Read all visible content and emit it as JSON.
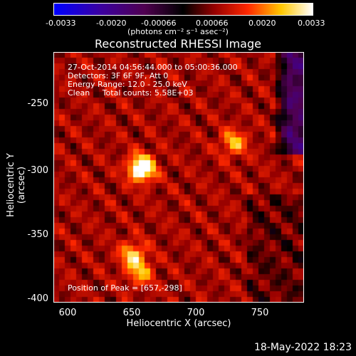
{
  "chart_data": {
    "type": "heatmap",
    "title": "Reconstructed RHESSI Image",
    "xlabel": "Heliocentric X (arcsec)",
    "ylabel": "Heliocentric Y (arcsec)",
    "xlim": [
      588,
      784
    ],
    "ylim": [
      -403,
      -207
    ],
    "xticks": [
      600,
      650,
      700,
      750
    ],
    "yticks": [
      -250,
      -300,
      -350,
      -400
    ],
    "colorbar": {
      "ticks": [
        "-0.0033",
        "-0.0020",
        "-0.00066",
        "0.00066",
        "0.0020",
        "0.0033"
      ],
      "unit_label": "(photons cm⁻² s⁻¹ asec⁻²)",
      "range": [
        -0.0033,
        0.0033
      ]
    },
    "annotations": [
      "27-Oct-2014 04:56:44.000 to 05:00:36.000",
      "Detectors: 3F 6F 9F, Att 0",
      "Energy Range: 12.0 - 25.0 keV",
      "Clean     Total counts: 5.58E+03"
    ],
    "peak_label": "Position of Peak = [657,-298]",
    "sources": [
      {
        "x": 657,
        "y": -298,
        "value": 0.0033
      },
      {
        "x": 729,
        "y": -278,
        "value": 0.0016
      },
      {
        "x": 650,
        "y": -366,
        "value": 0.0018
      },
      {
        "x": 656,
        "y": -380,
        "value": 0.0014
      }
    ]
  },
  "timestamp": "18-May-2022 18:23"
}
